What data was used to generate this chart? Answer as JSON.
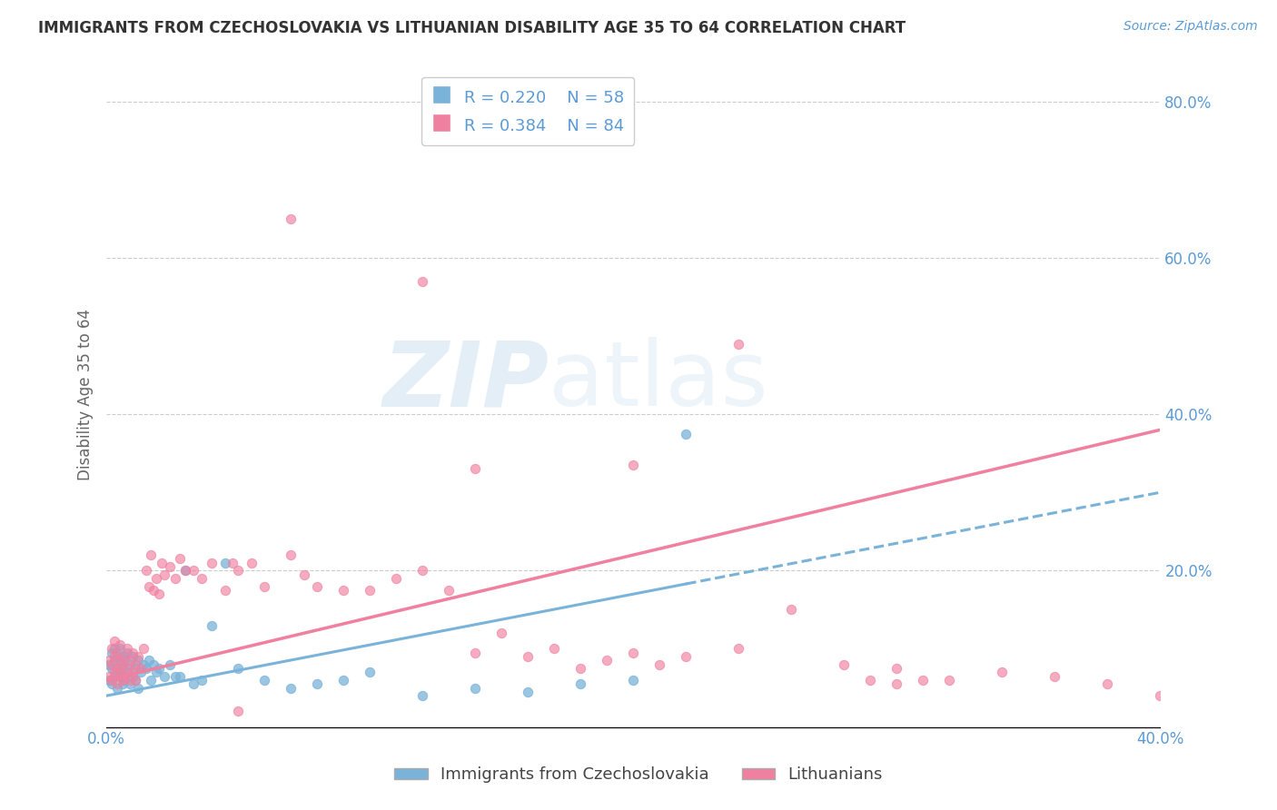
{
  "title": "IMMIGRANTS FROM CZECHOSLOVAKIA VS LITHUANIAN DISABILITY AGE 35 TO 64 CORRELATION CHART",
  "source": "Source: ZipAtlas.com",
  "ylabel": "Disability Age 35 to 64",
  "xlim": [
    0.0,
    0.4
  ],
  "ylim": [
    0.0,
    0.85
  ],
  "xticks": [
    0.0,
    0.4
  ],
  "xticklabels": [
    "0.0%",
    "40.0%"
  ],
  "yticks_right": [
    0.2,
    0.4,
    0.6,
    0.8
  ],
  "ytick_right_labels": [
    "20.0%",
    "40.0%",
    "60.0%",
    "80.0%"
  ],
  "legend_R1": "R = 0.220",
  "legend_N1": "N = 58",
  "legend_R2": "R = 0.384",
  "legend_N2": "N = 84",
  "color_blue": "#7ab3d9",
  "color_pink": "#f080a0",
  "color_axis_labels": "#5b9bd5",
  "color_title": "#333333",
  "watermark_zip": "ZIP",
  "watermark_atlas": "atlas",
  "trend_blue_x0": 0.0,
  "trend_blue_y0": 0.04,
  "trend_blue_x1": 0.4,
  "trend_blue_y1": 0.3,
  "trend_pink_x0": 0.0,
  "trend_pink_y0": 0.06,
  "trend_pink_x1": 0.4,
  "trend_pink_y1": 0.38,
  "scatter_blue_x": [
    0.001,
    0.001,
    0.002,
    0.002,
    0.002,
    0.003,
    0.003,
    0.003,
    0.004,
    0.004,
    0.004,
    0.005,
    0.005,
    0.005,
    0.006,
    0.006,
    0.006,
    0.007,
    0.007,
    0.008,
    0.008,
    0.009,
    0.009,
    0.01,
    0.01,
    0.011,
    0.011,
    0.012,
    0.012,
    0.013,
    0.014,
    0.015,
    0.016,
    0.017,
    0.018,
    0.019,
    0.02,
    0.022,
    0.024,
    0.026,
    0.028,
    0.03,
    0.033,
    0.036,
    0.04,
    0.045,
    0.05,
    0.06,
    0.07,
    0.08,
    0.09,
    0.1,
    0.12,
    0.14,
    0.16,
    0.18,
    0.2,
    0.22
  ],
  "scatter_blue_y": [
    0.06,
    0.08,
    0.055,
    0.075,
    0.095,
    0.065,
    0.085,
    0.1,
    0.07,
    0.09,
    0.05,
    0.065,
    0.08,
    0.1,
    0.055,
    0.075,
    0.09,
    0.06,
    0.085,
    0.07,
    0.095,
    0.055,
    0.08,
    0.065,
    0.09,
    0.075,
    0.06,
    0.085,
    0.05,
    0.07,
    0.08,
    0.075,
    0.085,
    0.06,
    0.08,
    0.07,
    0.075,
    0.065,
    0.08,
    0.065,
    0.065,
    0.2,
    0.055,
    0.06,
    0.13,
    0.21,
    0.075,
    0.06,
    0.05,
    0.055,
    0.06,
    0.07,
    0.04,
    0.05,
    0.045,
    0.055,
    0.06,
    0.375
  ],
  "scatter_pink_x": [
    0.001,
    0.001,
    0.002,
    0.002,
    0.002,
    0.003,
    0.003,
    0.003,
    0.004,
    0.004,
    0.004,
    0.005,
    0.005,
    0.005,
    0.006,
    0.006,
    0.007,
    0.007,
    0.008,
    0.008,
    0.009,
    0.009,
    0.01,
    0.01,
    0.011,
    0.011,
    0.012,
    0.013,
    0.014,
    0.015,
    0.016,
    0.017,
    0.018,
    0.019,
    0.02,
    0.021,
    0.022,
    0.024,
    0.026,
    0.028,
    0.03,
    0.033,
    0.036,
    0.04,
    0.045,
    0.048,
    0.05,
    0.055,
    0.06,
    0.07,
    0.075,
    0.08,
    0.09,
    0.1,
    0.11,
    0.12,
    0.13,
    0.14,
    0.15,
    0.16,
    0.17,
    0.18,
    0.19,
    0.2,
    0.21,
    0.22,
    0.24,
    0.26,
    0.28,
    0.3,
    0.32,
    0.34,
    0.36,
    0.38,
    0.4,
    0.14,
    0.2,
    0.24,
    0.29,
    0.31,
    0.07,
    0.12,
    0.3,
    0.05
  ],
  "scatter_pink_y": [
    0.065,
    0.085,
    0.06,
    0.08,
    0.1,
    0.07,
    0.09,
    0.11,
    0.075,
    0.095,
    0.055,
    0.07,
    0.085,
    0.105,
    0.06,
    0.08,
    0.065,
    0.09,
    0.075,
    0.1,
    0.06,
    0.085,
    0.07,
    0.095,
    0.08,
    0.06,
    0.09,
    0.075,
    0.1,
    0.2,
    0.18,
    0.22,
    0.175,
    0.19,
    0.17,
    0.21,
    0.195,
    0.205,
    0.19,
    0.215,
    0.2,
    0.2,
    0.19,
    0.21,
    0.175,
    0.21,
    0.2,
    0.21,
    0.18,
    0.22,
    0.195,
    0.18,
    0.175,
    0.175,
    0.19,
    0.2,
    0.175,
    0.095,
    0.12,
    0.09,
    0.1,
    0.075,
    0.085,
    0.095,
    0.08,
    0.09,
    0.1,
    0.15,
    0.08,
    0.075,
    0.06,
    0.07,
    0.065,
    0.055,
    0.04,
    0.33,
    0.335,
    0.49,
    0.06,
    0.06,
    0.65,
    0.57,
    0.055,
    0.02
  ]
}
